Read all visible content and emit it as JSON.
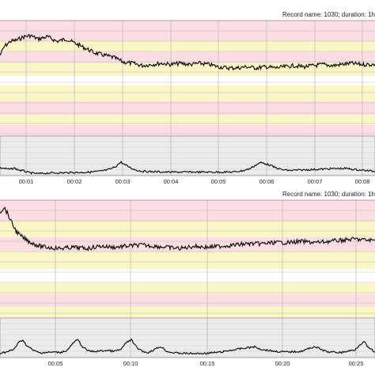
{
  "colors": {
    "pink": "#fbdde3",
    "yellow": "#fbf6c6",
    "white": "#ffffff",
    "gray": "#ececec",
    "grid": "#b9b9b9",
    "trace": "#111111"
  },
  "chart_data": [
    {
      "type": "line",
      "record_label": "Record name: 1030; duration: 1h",
      "xlabel": "",
      "ylabel": "",
      "x_ticks": [
        "00:01",
        "00:02",
        "00:03",
        "00:04",
        "00:05",
        "00:06",
        "00:07",
        "00:08"
      ],
      "x_minutes_range": [
        0.5,
        8.4
      ],
      "series": [
        {
          "kind": "heart-rate",
          "points": [
            [
              0.5,
              0.3
            ],
            [
              0.6,
              0.22
            ],
            [
              0.72,
              0.18
            ],
            [
              0.85,
              0.17
            ],
            [
              1.0,
              0.14
            ],
            [
              1.15,
              0.13
            ],
            [
              1.3,
              0.16
            ],
            [
              1.5,
              0.14
            ],
            [
              1.7,
              0.18
            ],
            [
              1.9,
              0.16
            ],
            [
              2.1,
              0.2
            ],
            [
              2.3,
              0.24
            ],
            [
              2.5,
              0.28
            ],
            [
              2.7,
              0.3
            ],
            [
              2.9,
              0.32
            ],
            [
              3.1,
              0.36
            ],
            [
              3.3,
              0.37
            ],
            [
              3.5,
              0.39
            ],
            [
              3.7,
              0.38
            ],
            [
              3.9,
              0.37
            ],
            [
              4.1,
              0.38
            ],
            [
              4.3,
              0.37
            ],
            [
              4.5,
              0.38
            ],
            [
              4.7,
              0.37
            ],
            [
              4.9,
              0.38
            ],
            [
              5.1,
              0.4
            ],
            [
              5.3,
              0.41
            ],
            [
              5.5,
              0.41
            ],
            [
              5.7,
              0.4
            ],
            [
              5.9,
              0.41
            ],
            [
              6.1,
              0.4
            ],
            [
              6.3,
              0.41
            ],
            [
              6.5,
              0.4
            ],
            [
              6.7,
              0.39
            ],
            [
              6.9,
              0.4
            ],
            [
              7.1,
              0.39
            ],
            [
              7.3,
              0.38
            ],
            [
              7.5,
              0.39
            ],
            [
              7.7,
              0.38
            ],
            [
              7.9,
              0.37
            ],
            [
              8.1,
              0.38
            ],
            [
              8.4,
              0.38
            ]
          ]
        },
        {
          "kind": "contraction",
          "points": [
            [
              0.5,
              0.8
            ],
            [
              0.6,
              0.82
            ],
            [
              0.7,
              0.84
            ],
            [
              0.8,
              0.81
            ],
            [
              0.9,
              0.86
            ],
            [
              1.0,
              0.88
            ],
            [
              1.1,
              0.92
            ],
            [
              1.2,
              0.94
            ],
            [
              1.3,
              0.95
            ],
            [
              1.45,
              0.94
            ],
            [
              1.6,
              0.93
            ],
            [
              1.8,
              0.93
            ],
            [
              2.0,
              0.92
            ],
            [
              2.2,
              0.92
            ],
            [
              2.4,
              0.91
            ],
            [
              2.6,
              0.89
            ],
            [
              2.75,
              0.86
            ],
            [
              2.85,
              0.82
            ],
            [
              2.95,
              0.76
            ],
            [
              3.0,
              0.7
            ],
            [
              3.05,
              0.66
            ],
            [
              3.12,
              0.72
            ],
            [
              3.2,
              0.77
            ],
            [
              3.3,
              0.83
            ],
            [
              3.4,
              0.87
            ],
            [
              3.5,
              0.89
            ],
            [
              3.7,
              0.9
            ],
            [
              4.0,
              0.91
            ],
            [
              4.5,
              0.91
            ],
            [
              5.0,
              0.91
            ],
            [
              5.4,
              0.91
            ],
            [
              5.6,
              0.88
            ],
            [
              5.75,
              0.83
            ],
            [
              5.85,
              0.76
            ],
            [
              5.92,
              0.71
            ],
            [
              6.0,
              0.67
            ],
            [
              6.1,
              0.7
            ],
            [
              6.2,
              0.74
            ],
            [
              6.3,
              0.8
            ],
            [
              6.45,
              0.85
            ],
            [
              6.6,
              0.87
            ],
            [
              6.8,
              0.86
            ],
            [
              7.0,
              0.85
            ],
            [
              7.2,
              0.84
            ],
            [
              7.4,
              0.83
            ],
            [
              7.6,
              0.82
            ],
            [
              7.8,
              0.82
            ],
            [
              8.0,
              0.85
            ],
            [
              8.2,
              0.87
            ],
            [
              8.4,
              0.89
            ]
          ]
        }
      ]
    },
    {
      "type": "line",
      "record_label": "Record name: 1030; duration: 1h",
      "xlabel": "",
      "ylabel": "",
      "x_ticks": [
        "00:05",
        "00:10",
        "00:15",
        "00:20",
        "00:25"
      ],
      "x_minutes_range": [
        0.5,
        28.5
      ],
      "series": [
        {
          "kind": "heart-rate",
          "points": [
            [
              0.5,
              0.1
            ],
            [
              0.8,
              0.06
            ],
            [
              1.1,
              0.12
            ],
            [
              1.4,
              0.2
            ],
            [
              1.7,
              0.26
            ],
            [
              2.0,
              0.3
            ],
            [
              2.5,
              0.34
            ],
            [
              3.0,
              0.37
            ],
            [
              3.5,
              0.39
            ],
            [
              4.0,
              0.4
            ],
            [
              5.0,
              0.41
            ],
            [
              6.0,
              0.4
            ],
            [
              7.0,
              0.41
            ],
            [
              8.0,
              0.39
            ],
            [
              9.0,
              0.4
            ],
            [
              10.0,
              0.39
            ],
            [
              11.0,
              0.38
            ],
            [
              12.0,
              0.39
            ],
            [
              13.0,
              0.4
            ],
            [
              14.0,
              0.41
            ],
            [
              15.0,
              0.39
            ],
            [
              16.0,
              0.4
            ],
            [
              17.0,
              0.39
            ],
            [
              18.0,
              0.38
            ],
            [
              19.0,
              0.37
            ],
            [
              20.0,
              0.37
            ],
            [
              21.0,
              0.36
            ],
            [
              22.0,
              0.36
            ],
            [
              23.0,
              0.35
            ],
            [
              24.0,
              0.36
            ],
            [
              25.0,
              0.35
            ],
            [
              26.0,
              0.34
            ],
            [
              27.0,
              0.33
            ],
            [
              28.0,
              0.34
            ],
            [
              28.5,
              0.34
            ]
          ]
        },
        {
          "kind": "contraction",
          "points": [
            [
              0.5,
              0.88
            ],
            [
              1.0,
              0.86
            ],
            [
              1.5,
              0.8
            ],
            [
              1.9,
              0.62
            ],
            [
              2.2,
              0.55
            ],
            [
              2.5,
              0.7
            ],
            [
              3.0,
              0.82
            ],
            [
              3.5,
              0.88
            ],
            [
              4.0,
              0.87
            ],
            [
              4.5,
              0.86
            ],
            [
              5.0,
              0.87
            ],
            [
              5.5,
              0.82
            ],
            [
              6.0,
              0.62
            ],
            [
              6.3,
              0.55
            ],
            [
              6.6,
              0.7
            ],
            [
              7.0,
              0.82
            ],
            [
              7.5,
              0.85
            ],
            [
              8.0,
              0.83
            ],
            [
              8.5,
              0.82
            ],
            [
              9.0,
              0.84
            ],
            [
              9.5,
              0.8
            ],
            [
              10.0,
              0.6
            ],
            [
              10.3,
              0.55
            ],
            [
              10.6,
              0.7
            ],
            [
              11.0,
              0.82
            ],
            [
              11.5,
              0.88
            ],
            [
              12.0,
              0.8
            ],
            [
              12.5,
              0.72
            ],
            [
              13.0,
              0.85
            ],
            [
              13.5,
              0.88
            ],
            [
              14.0,
              0.89
            ],
            [
              15.0,
              0.9
            ],
            [
              16.0,
              0.89
            ],
            [
              17.0,
              0.86
            ],
            [
              18.0,
              0.8
            ],
            [
              19.0,
              0.75
            ],
            [
              19.5,
              0.73
            ],
            [
              20.0,
              0.79
            ],
            [
              21.0,
              0.84
            ],
            [
              22.0,
              0.86
            ],
            [
              23.0,
              0.84
            ],
            [
              23.5,
              0.78
            ],
            [
              24.0,
              0.72
            ],
            [
              24.5,
              0.8
            ],
            [
              25.0,
              0.86
            ],
            [
              26.0,
              0.87
            ],
            [
              27.0,
              0.8
            ],
            [
              27.4,
              0.66
            ],
            [
              27.7,
              0.6
            ],
            [
              28.0,
              0.75
            ],
            [
              28.5,
              0.86
            ]
          ]
        }
      ]
    }
  ]
}
